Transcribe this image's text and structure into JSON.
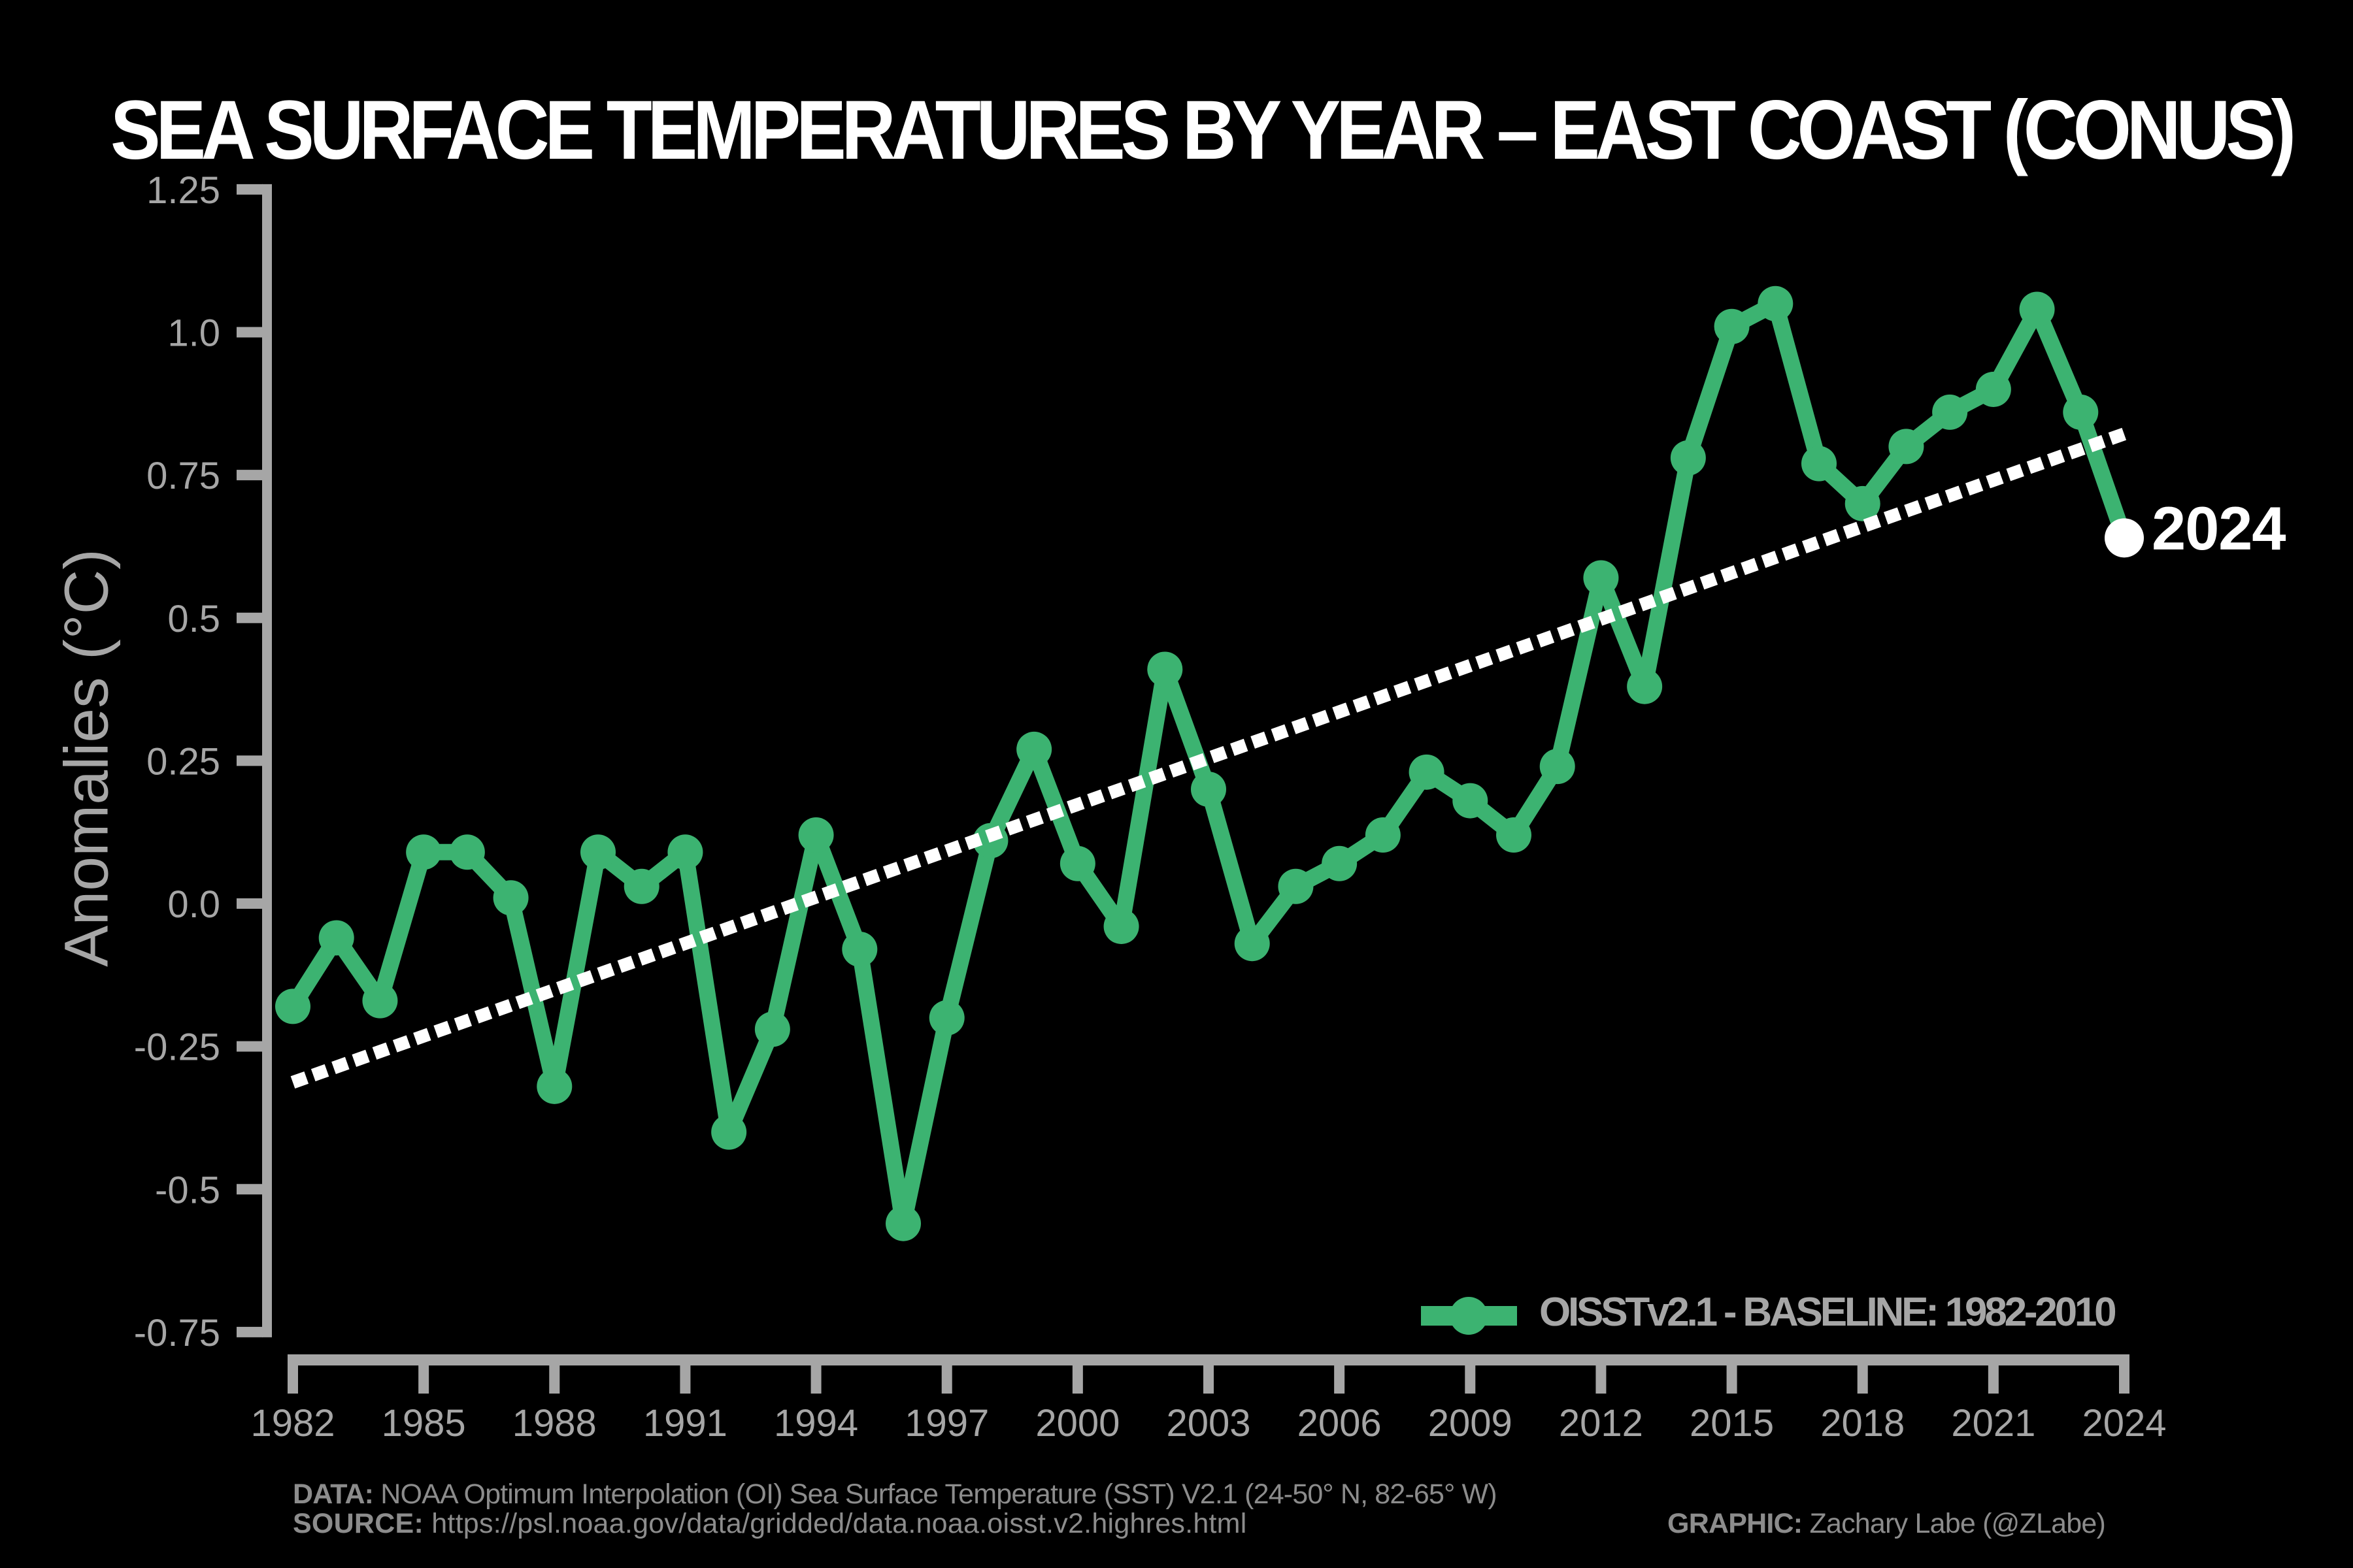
{
  "title": {
    "text": "SEA SURFACE TEMPERATURES BY YEAR – EAST COAST (CONUS)",
    "color": "#ffffff"
  },
  "y_axis_label": "Anomalies (°C)",
  "legend": {
    "series_label": "OISSTv2.1 - BASELINE: 1982-2010"
  },
  "annotation": {
    "last_year_label": "2024"
  },
  "footer": {
    "data_label": "DATA:",
    "data_text": " NOAA Optimum Interpolation (OI) Sea Surface Temperature (SST) V2.1 (24-50° N, 82-65° W)",
    "source_label": "SOURCE:",
    "source_text": " https://psl.noaa.gov/data/gridded/data.noaa.oisst.v2.highres.html",
    "graphic_label": "GRAPHIC:",
    "graphic_text": " Zachary Labe (@ZLabe)"
  },
  "colors": {
    "background": "#000000",
    "line": "#3cb371",
    "axis": "#a6a6a6",
    "tick_label": "#a6a6a6",
    "trend": "#ffffff",
    "last_marker": "#ffffff",
    "footer_text": "#8c8c8c"
  },
  "chart_data": {
    "type": "line",
    "title": "SEA SURFACE TEMPERATURES BY YEAR – EAST COAST (CONUS)",
    "xlabel": "",
    "ylabel": "Anomalies (°C)",
    "xlim": [
      1982,
      2024
    ],
    "ylim": [
      -0.75,
      1.25
    ],
    "grid": false,
    "legend_position": "lower right",
    "series": [
      {
        "name": "OISSTv2.1 - BASELINE: 1982-2010",
        "color": "#3cb371",
        "x": [
          1982,
          1983,
          1984,
          1985,
          1986,
          1987,
          1988,
          1989,
          1990,
          1991,
          1992,
          1993,
          1994,
          1995,
          1996,
          1997,
          1998,
          1999,
          2000,
          2001,
          2002,
          2003,
          2004,
          2005,
          2006,
          2007,
          2008,
          2009,
          2010,
          2011,
          2012,
          2013,
          2014,
          2015,
          2016,
          2017,
          2018,
          2019,
          2020,
          2021,
          2022,
          2023,
          2024
        ],
        "values": [
          -0.18,
          -0.06,
          -0.17,
          0.09,
          0.09,
          0.01,
          -0.32,
          0.09,
          0.03,
          0.09,
          -0.4,
          -0.22,
          0.12,
          -0.08,
          -0.56,
          -0.2,
          0.11,
          0.27,
          0.07,
          -0.04,
          0.41,
          0.2,
          -0.07,
          0.03,
          0.07,
          0.12,
          0.23,
          0.18,
          0.12,
          0.24,
          0.57,
          0.38,
          0.78,
          1.01,
          1.05,
          0.77,
          0.7,
          0.8,
          0.86,
          0.9,
          1.04,
          0.86,
          0.64
        ]
      }
    ],
    "trend_line": {
      "style": "dashed",
      "color": "#ffffff",
      "x": [
        1982,
        2024
      ],
      "values": [
        -0.313,
        0.822
      ]
    },
    "xticks": [
      1982,
      1985,
      1988,
      1991,
      1994,
      1997,
      2000,
      2003,
      2006,
      2009,
      2012,
      2015,
      2018,
      2021,
      2024
    ],
    "yticks": [
      -0.75,
      -0.5,
      -0.25,
      0.0,
      0.25,
      0.5,
      0.75,
      1.0,
      1.25
    ],
    "ytick_labels": [
      "-0.75",
      "-0.5",
      "-0.25",
      "0.0",
      "0.25",
      "0.5",
      "0.75",
      "1.0",
      "1.25"
    ],
    "annotations": [
      {
        "text": "2024",
        "year": 2024,
        "value": 0.64,
        "color": "#ffffff"
      }
    ]
  }
}
